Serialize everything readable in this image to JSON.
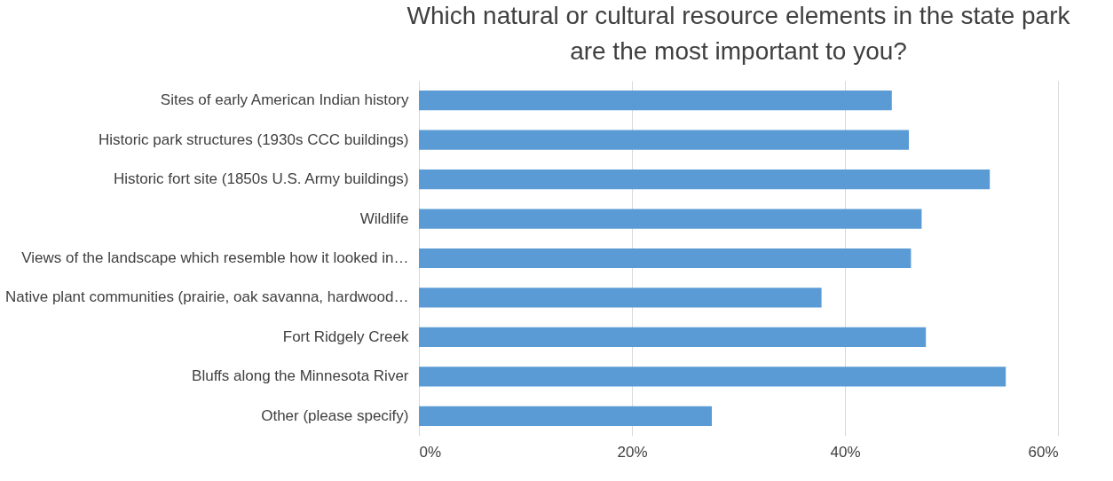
{
  "chart_data": {
    "type": "bar",
    "orientation": "horizontal",
    "title": "Which natural or cultural resource elements in the state park are the most important to you?",
    "categories": [
      "Sites of early American Indian history",
      "Historic park structures (1930s CCC buildings)",
      "Historic fort site (1850s U.S. Army buildings)",
      "Wildlife",
      "Views of the landscape which resemble how it looked in…",
      "Native plant communities (prairie, oak savanna, hardwood…",
      "Fort Ridgely Creek",
      "Bluffs along the Minnesota River",
      "Other (please specify)"
    ],
    "values": [
      44.4,
      46.0,
      53.6,
      47.2,
      46.2,
      37.8,
      47.6,
      55.1,
      27.5
    ],
    "color": "#5b9bd5",
    "xlim": [
      0,
      60
    ],
    "xticks": [
      {
        "value": 0,
        "label": "0%"
      },
      {
        "value": 20,
        "label": "20%"
      },
      {
        "value": 40,
        "label": "40%"
      },
      {
        "value": 60,
        "label": "60%"
      }
    ],
    "grid": "x"
  }
}
